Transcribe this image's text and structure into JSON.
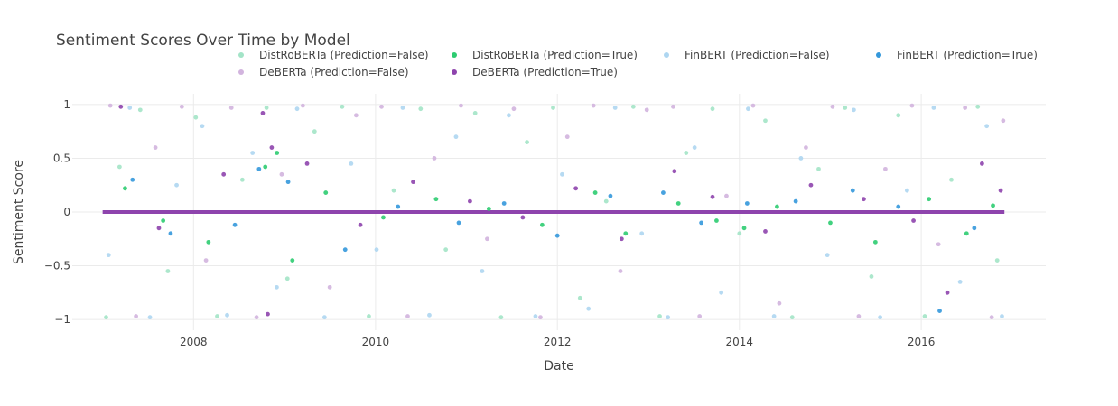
{
  "chart_data": {
    "type": "scatter",
    "title": "Sentiment Scores Over Time by Model",
    "xlabel": "Date",
    "ylabel": "Sentiment Score",
    "x_type": "date",
    "xlim": [
      "2006-09-01",
      "2017-05-15"
    ],
    "ylim": [
      -1.1,
      1.1
    ],
    "x_ticks": [
      {
        "value": "2008-01-01",
        "label": "2008"
      },
      {
        "value": "2010-01-01",
        "label": "2010"
      },
      {
        "value": "2012-01-01",
        "label": "2012"
      },
      {
        "value": "2014-01-01",
        "label": "2014"
      },
      {
        "value": "2016-01-01",
        "label": "2016"
      }
    ],
    "y_ticks": [
      {
        "value": 1,
        "label": "1"
      },
      {
        "value": 0.5,
        "label": "0.5"
      },
      {
        "value": 0,
        "label": "0"
      },
      {
        "value": -0.5,
        "label": "−0.5"
      },
      {
        "value": -1,
        "label": "−1"
      }
    ],
    "grid": true,
    "legend_position": "top",
    "baseline": {
      "y": 0,
      "x_start": "2007-01-01",
      "x_end": "2016-11-30",
      "color": "#8e44ad"
    },
    "series": [
      {
        "name": "DistRoBERTa (Prediction=False)",
        "color": "#a3e4c7",
        "x": [
          "2007-01-15",
          "2007-03-10",
          "2007-06-01",
          "2007-09-20",
          "2008-01-10",
          "2008-04-05",
          "2008-07-15",
          "2008-10-20",
          "2009-01-12",
          "2009-05-01",
          "2009-08-20",
          "2009-12-05",
          "2010-03-15",
          "2010-07-01",
          "2010-10-10",
          "2011-02-05",
          "2011-05-20",
          "2011-09-01",
          "2011-12-15",
          "2012-04-01",
          "2012-07-15",
          "2012-11-01",
          "2013-02-15",
          "2013-06-01",
          "2013-09-15",
          "2014-01-01",
          "2014-04-15",
          "2014-08-01",
          "2014-11-15",
          "2015-03-01",
          "2015-06-15",
          "2015-10-01",
          "2016-01-15",
          "2016-05-01",
          "2016-08-15",
          "2016-11-01"
        ],
        "y": [
          -0.98,
          0.42,
          0.95,
          -0.55,
          0.88,
          -0.97,
          0.3,
          0.97,
          -0.62,
          0.75,
          0.98,
          -0.97,
          0.2,
          0.96,
          -0.35,
          0.92,
          -0.98,
          0.65,
          0.97,
          -0.8,
          0.1,
          0.98,
          -0.97,
          0.55,
          0.96,
          -0.2,
          0.85,
          -0.98,
          0.4,
          0.97,
          -0.6,
          0.9,
          -0.97,
          0.3,
          0.98,
          -0.45
        ]
      },
      {
        "name": "DeBERTa (Prediction=False)",
        "color": "#d2b4de",
        "x": [
          "2007-02-01",
          "2007-05-15",
          "2007-08-01",
          "2007-11-15",
          "2008-02-20",
          "2008-06-01",
          "2008-09-10",
          "2008-12-20",
          "2009-03-15",
          "2009-07-01",
          "2009-10-15",
          "2010-01-25",
          "2010-05-10",
          "2010-08-25",
          "2010-12-10",
          "2011-03-25",
          "2011-07-10",
          "2011-10-25",
          "2012-02-10",
          "2012-05-25",
          "2012-09-10",
          "2012-12-25",
          "2013-04-10",
          "2013-07-25",
          "2013-11-10",
          "2014-02-25",
          "2014-06-10",
          "2014-09-25",
          "2015-01-10",
          "2015-04-25",
          "2015-08-10",
          "2015-11-25",
          "2016-03-10",
          "2016-06-25",
          "2016-10-10",
          "2016-11-25"
        ],
        "y": [
          0.99,
          -0.97,
          0.6,
          0.98,
          -0.45,
          0.97,
          -0.98,
          0.35,
          0.99,
          -0.7,
          0.9,
          0.98,
          -0.97,
          0.5,
          0.99,
          -0.25,
          0.96,
          -0.98,
          0.7,
          0.99,
          -0.55,
          0.95,
          0.98,
          -0.97,
          0.15,
          0.99,
          -0.85,
          0.6,
          0.98,
          -0.97,
          0.4,
          0.99,
          -0.3,
          0.97,
          -0.98,
          0.85
        ]
      },
      {
        "name": "FinBERT (Prediction=False)",
        "color": "#aed6f1",
        "x": [
          "2007-01-25",
          "2007-04-20",
          "2007-07-10",
          "2007-10-25",
          "2008-02-05",
          "2008-05-15",
          "2008-08-25",
          "2008-11-30",
          "2009-02-20",
          "2009-06-10",
          "2009-09-25",
          "2010-01-05",
          "2010-04-20",
          "2010-08-05",
          "2010-11-20",
          "2011-03-05",
          "2011-06-20",
          "2011-10-05",
          "2012-01-20",
          "2012-05-05",
          "2012-08-20",
          "2012-12-05",
          "2013-03-20",
          "2013-07-05",
          "2013-10-20",
          "2014-02-05",
          "2014-05-20",
          "2014-09-05",
          "2014-12-20",
          "2015-04-05",
          "2015-07-20",
          "2015-11-05",
          "2016-02-20",
          "2016-06-05",
          "2016-09-20",
          "2016-11-20"
        ],
        "y": [
          -0.4,
          0.97,
          -0.98,
          0.25,
          0.8,
          -0.96,
          0.55,
          -0.7,
          0.96,
          -0.98,
          0.45,
          -0.35,
          0.97,
          -0.96,
          0.7,
          -0.55,
          0.9,
          -0.97,
          0.35,
          -0.9,
          0.97,
          -0.2,
          -0.98,
          0.6,
          -0.75,
          0.96,
          -0.97,
          0.5,
          -0.4,
          0.95,
          -0.98,
          0.2,
          0.97,
          -0.65,
          0.8,
          -0.97
        ]
      },
      {
        "name": "DistRoBERTa (Prediction=True)",
        "color": "#2ecc71",
        "x": [
          "2007-04-01",
          "2007-09-01",
          "2008-03-01",
          "2008-10-15",
          "2008-12-01",
          "2009-02-01",
          "2009-06-15",
          "2010-02-01",
          "2010-09-01",
          "2011-04-01",
          "2011-11-01",
          "2012-06-01",
          "2012-10-01",
          "2013-05-01",
          "2013-10-01",
          "2014-01-20",
          "2014-06-01",
          "2015-01-01",
          "2015-07-01",
          "2016-02-01",
          "2016-07-01",
          "2016-10-15"
        ],
        "y": [
          0.22,
          -0.08,
          -0.28,
          0.42,
          0.55,
          -0.45,
          0.18,
          -0.05,
          0.12,
          0.03,
          -0.12,
          0.18,
          -0.2,
          0.08,
          -0.08,
          -0.15,
          0.05,
          -0.1,
          -0.28,
          0.12,
          -0.2,
          0.06
        ]
      },
      {
        "name": "DeBERTa (Prediction=True)",
        "color": "#8e44ad",
        "x": [
          "2007-03-15",
          "2007-08-15",
          "2008-05-01",
          "2008-10-05",
          "2008-10-25",
          "2008-11-10",
          "2009-04-01",
          "2009-11-01",
          "2010-06-01",
          "2011-01-15",
          "2011-08-15",
          "2012-03-15",
          "2012-09-15",
          "2013-04-15",
          "2013-09-15",
          "2014-04-15",
          "2014-10-15",
          "2015-05-15",
          "2015-12-01",
          "2016-04-15",
          "2016-09-01",
          "2016-11-15"
        ],
        "y": [
          0.98,
          -0.15,
          0.35,
          0.92,
          -0.95,
          0.6,
          0.45,
          -0.12,
          0.28,
          0.1,
          -0.05,
          0.22,
          -0.25,
          0.38,
          0.14,
          -0.18,
          0.25,
          0.12,
          -0.08,
          -0.75,
          0.45,
          0.2
        ]
      },
      {
        "name": "FinBERT (Prediction=True)",
        "color": "#3498db",
        "x": [
          "2007-05-01",
          "2007-10-01",
          "2008-06-15",
          "2008-09-20",
          "2009-01-15",
          "2009-09-01",
          "2010-04-01",
          "2010-12-01",
          "2011-06-01",
          "2012-01-01",
          "2012-08-01",
          "2013-03-01",
          "2013-08-01",
          "2014-02-01",
          "2014-08-15",
          "2015-04-01",
          "2015-10-01",
          "2016-03-15",
          "2016-08-01"
        ],
        "y": [
          0.3,
          -0.2,
          -0.12,
          0.4,
          0.28,
          -0.35,
          0.05,
          -0.1,
          0.08,
          -0.22,
          0.15,
          0.18,
          -0.1,
          0.08,
          0.1,
          0.2,
          0.05,
          -0.92,
          -0.15
        ]
      }
    ]
  }
}
